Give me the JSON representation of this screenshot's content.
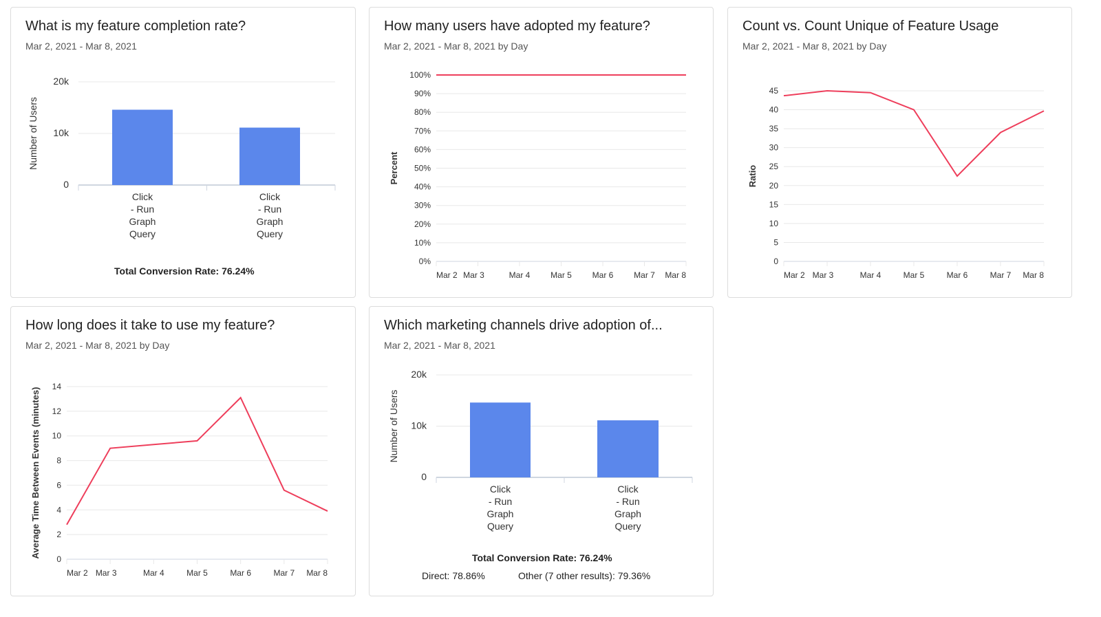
{
  "colors": {
    "bar": "#5b87eb",
    "line": "#ee3e5b",
    "grid": "#e8e8e8",
    "axis": "#cfd6e0"
  },
  "cards": [
    {
      "title": "What is my feature completion rate?",
      "subtitle": "Mar 2, 2021 - Mar 8, 2021",
      "footer": "Total Conversion Rate: 76.24%"
    },
    {
      "title": "How many users have adopted my feature?",
      "subtitle": "Mar 2, 2021 - Mar 8, 2021 by Day"
    },
    {
      "title": "Count vs. Count Unique of Feature Usage",
      "subtitle": "Mar 2, 2021 - Mar 8, 2021 by Day"
    },
    {
      "title": "How long does it take to use my feature?",
      "subtitle": "Mar 2, 2021 - Mar 8, 2021 by Day"
    },
    {
      "title": "Which marketing channels drive adoption of...",
      "subtitle": "Mar 2, 2021 - Mar 8, 2021",
      "footer": "Total Conversion Rate: 76.24%",
      "breakdown": [
        "Direct: 78.86%",
        "Other (7 other results): 79.36%"
      ]
    }
  ],
  "chart_data": [
    {
      "type": "bar",
      "categories": [
        "Click - Run Graph Query",
        "Click - Run Graph Query"
      ],
      "values": [
        14600,
        11130
      ],
      "ylabel": "Number of Users",
      "ylim": [
        0,
        20000
      ],
      "yticks": [
        "0",
        "10k",
        "20k"
      ],
      "grid": true
    },
    {
      "type": "line",
      "categories": [
        "Mar 2",
        "Mar 3",
        "Mar 4",
        "Mar 5",
        "Mar 6",
        "Mar 7",
        "Mar 8"
      ],
      "values": [
        100,
        100,
        100,
        100,
        100,
        100,
        100
      ],
      "ylabel": "Percent",
      "ylim": [
        0,
        100
      ],
      "yticks": [
        "0%",
        "10%",
        "20%",
        "30%",
        "40%",
        "50%",
        "60%",
        "70%",
        "80%",
        "90%",
        "100%"
      ],
      "grid": true
    },
    {
      "type": "line",
      "categories": [
        "Mar 2",
        "Mar 3",
        "Mar 4",
        "Mar 5",
        "Mar 6",
        "Mar 7",
        "Mar 8"
      ],
      "values": [
        43.7,
        45,
        44.5,
        40,
        22.5,
        34,
        39.7
      ],
      "ylabel": "Ratio",
      "ylim": [
        0,
        45
      ],
      "yticks": [
        "0",
        "5",
        "10",
        "15",
        "20",
        "25",
        "30",
        "35",
        "40",
        "45"
      ],
      "grid": true
    },
    {
      "type": "line",
      "categories": [
        "Mar 2",
        "Mar 3",
        "Mar 4",
        "Mar 5",
        "Mar 6",
        "Mar 7",
        "Mar 8"
      ],
      "values": [
        2.8,
        9.0,
        9.3,
        9.6,
        13.1,
        5.6,
        3.9
      ],
      "ylabel": "Average Time Between Events (minutes)",
      "ylim": [
        0,
        14
      ],
      "yticks": [
        "0",
        "2",
        "4",
        "6",
        "8",
        "10",
        "12",
        "14"
      ],
      "grid": true
    },
    {
      "type": "bar",
      "categories": [
        "Click - Run Graph Query",
        "Click - Run Graph Query"
      ],
      "values": [
        14600,
        11130
      ],
      "ylabel": "Number of Users",
      "ylim": [
        0,
        20000
      ],
      "yticks": [
        "0",
        "10k",
        "20k"
      ],
      "grid": true
    }
  ]
}
